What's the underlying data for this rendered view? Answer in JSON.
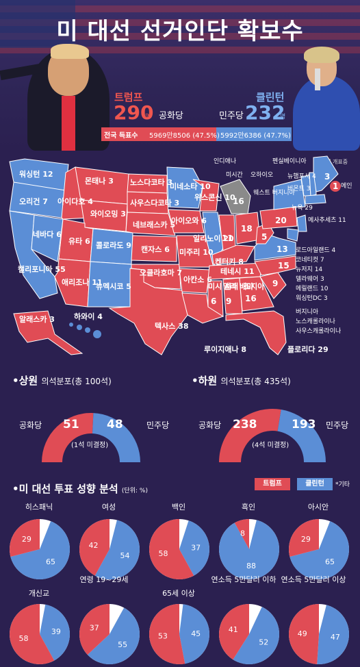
{
  "title": "미 대선 선거인단 확보수",
  "trump": {
    "name": "트럼프",
    "seats": "290",
    "unit": "명",
    "party": "공화당"
  },
  "clinton": {
    "name": "클린턴",
    "seats": "232",
    "unit": "명",
    "party": "민주당"
  },
  "popular": {
    "label": "전국 득표수",
    "trump": "5969만8506 (47.5%)",
    "clinton": "5992만6386 (47.7%)"
  },
  "legend_undecided": "개표중",
  "colors": {
    "red": "#e04c55",
    "blue": "#5b8ed6",
    "gray": "#8a8a8a",
    "bg": "#2b2050"
  },
  "map_states": {
    "wa": "워싱턴 12",
    "or": "오리건 7",
    "ca": "캘리포니아 55",
    "nv": "네바다 6",
    "id": "아이다호 4",
    "mt": "몬태나 3",
    "wy": "와이오밍 3",
    "ut": "유타 6",
    "az": "애리조나 11",
    "co": "콜로라도 9",
    "nm": "뉴멕시코 5",
    "nd": "노스다코타 3",
    "sd": "사우스다코타 3",
    "ne": "네브래스카 5",
    "ks": "캔자스 6",
    "ok": "오클라호마 7",
    "tx": "텍사스 38",
    "mn": "미네소타 10",
    "ia": "아이오와 6",
    "mo": "미주리 10",
    "ar": "아칸소 6",
    "la": "루이지애나 8",
    "wi": "위스콘신 10",
    "il": "일리노이 20",
    "ak": "알래스카 3",
    "hi": "하와이 4",
    "in": "인디애나",
    "mi": "미시간",
    "oh": "오하이오",
    "pa": "펜실베이니아",
    "nh": "뉴햄프셔 4",
    "vt": "버몬트 3",
    "me": "메인",
    "wv": "웨스트 버지니아",
    "ny": "뉴욕 29",
    "ma": "메사추세츠 11",
    "ri": "로드아일랜드 4",
    "ct": "코네티컷 7",
    "nj": "뉴저지 14",
    "de": "델라웨어 3",
    "md": "메릴랜드 10",
    "dc": "워싱턴DC 3",
    "va": "버지니아",
    "nc": "노스캐롤라이나",
    "sc": "사우스캐롤라이나",
    "ky": "켄터키 8",
    "tn": "테네시 11",
    "ms": "미시 시피",
    "al": "앨라 배마",
    "ga": "조지아",
    "fl": "플로리다 29",
    "num_in": "11",
    "num_mi": "16",
    "num_oh": "18",
    "num_pa": "20",
    "num_wv": "5",
    "num_va": "13",
    "num_nc": "15",
    "num_sc": "9",
    "num_ms": "6",
    "num_al": "9",
    "num_ga": "16",
    "num_me_a": "3",
    "num_me_b": "1"
  },
  "senate": {
    "title": "•상원",
    "subtitle": "의석분포(총 100석)",
    "rep_label": "공화당",
    "dem_label": "민주당",
    "rep": "51",
    "dem": "48",
    "undecided": "(1석 미결정)"
  },
  "house": {
    "title": "•하원",
    "subtitle": "의석분포(총 435석)",
    "rep_label": "공화당",
    "dem_label": "민주당",
    "rep": "238",
    "dem": "193",
    "undecided": "(4석 미결정)"
  },
  "analysis": {
    "title": "•미 대선 투표 성향 분석",
    "unit": "(단위: %)",
    "legend_trump": "트럼프",
    "legend_clinton": "클린턴",
    "legend_other": "*기타"
  },
  "chart_data": {
    "type": "pie",
    "units": "%",
    "charts": [
      {
        "label": "히스패닉",
        "trump": 29,
        "clinton": 65
      },
      {
        "label": "여성",
        "trump": 42,
        "clinton": 54
      },
      {
        "label": "백인",
        "trump": 58,
        "clinton": 37
      },
      {
        "label": "흑인",
        "trump": 8,
        "clinton": 88
      },
      {
        "label": "아시안",
        "trump": 29,
        "clinton": 65
      },
      {
        "label": "개신교",
        "trump": 58,
        "clinton": 39
      },
      {
        "label": "연령 19~29세",
        "trump": 37,
        "clinton": 55
      },
      {
        "label": "65세 이상",
        "trump": 53,
        "clinton": 45
      },
      {
        "label": "연소득 5만달러 이하",
        "trump": 41,
        "clinton": 52
      },
      {
        "label": "연소득 5만달러 이상",
        "trump": 49,
        "clinton": 47
      }
    ]
  }
}
